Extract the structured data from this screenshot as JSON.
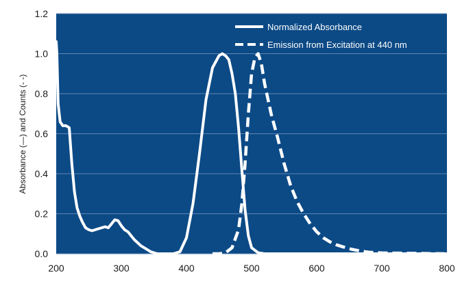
{
  "chart_data": {
    "type": "line",
    "ylabel": "Absorbance (—) and Counts (- -)",
    "xlim": [
      200,
      800
    ],
    "ylim": [
      0,
      1.2
    ],
    "xticks": [
      200,
      300,
      400,
      500,
      600,
      700,
      800
    ],
    "yticks": [
      "0.0",
      "0.2",
      "0.4",
      "0.6",
      "0.8",
      "1.0",
      "1.2"
    ],
    "grid": true,
    "legend_position": "top-right",
    "colors": {
      "background": "#0c4a86",
      "line": "#ffffff",
      "grid": "#5f86b3"
    },
    "series": [
      {
        "name": "Normalized Absorbance",
        "style": "solid",
        "x": [
          200,
          201,
          203,
          206,
          210,
          215,
          220,
          224,
          228,
          232,
          236,
          240,
          245,
          250,
          255,
          260,
          265,
          270,
          275,
          280,
          285,
          290,
          295,
          300,
          305,
          310,
          315,
          320,
          325,
          330,
          335,
          340,
          345,
          350,
          355,
          360,
          380,
          390,
          400,
          410,
          420,
          430,
          440,
          450,
          455,
          460,
          465,
          470,
          475,
          480,
          485,
          490,
          495,
          500,
          510,
          520,
          550,
          600,
          700,
          800
        ],
        "y": [
          1.06,
          1.0,
          0.75,
          0.66,
          0.64,
          0.64,
          0.63,
          0.45,
          0.31,
          0.23,
          0.19,
          0.16,
          0.13,
          0.12,
          0.115,
          0.12,
          0.125,
          0.13,
          0.135,
          0.13,
          0.15,
          0.17,
          0.165,
          0.14,
          0.12,
          0.11,
          0.09,
          0.07,
          0.055,
          0.04,
          0.03,
          0.02,
          0.01,
          0.005,
          0.0,
          0.0,
          0.0,
          0.01,
          0.08,
          0.25,
          0.5,
          0.77,
          0.93,
          0.99,
          1.0,
          0.99,
          0.97,
          0.9,
          0.8,
          0.63,
          0.42,
          0.22,
          0.09,
          0.03,
          0.005,
          0.0,
          0.0,
          0.0,
          0.0,
          0.0
        ]
      },
      {
        "name": "Emission from Excitation at 440 nm",
        "style": "dashed",
        "x": [
          440,
          450,
          460,
          470,
          480,
          485,
          490,
          495,
          500,
          505,
          510,
          515,
          520,
          530,
          540,
          550,
          560,
          570,
          580,
          590,
          600,
          610,
          620,
          630,
          640,
          650,
          660,
          670,
          680,
          700,
          750,
          800
        ],
        "y": [
          0.0,
          0.0,
          0.005,
          0.03,
          0.12,
          0.25,
          0.45,
          0.7,
          0.9,
          0.98,
          1.0,
          0.95,
          0.85,
          0.7,
          0.58,
          0.45,
          0.34,
          0.26,
          0.2,
          0.15,
          0.11,
          0.08,
          0.06,
          0.045,
          0.035,
          0.025,
          0.018,
          0.012,
          0.008,
          0.004,
          0.002,
          0.0
        ]
      }
    ]
  }
}
